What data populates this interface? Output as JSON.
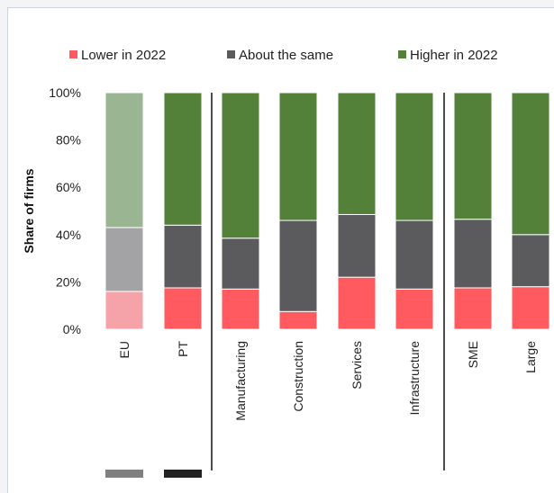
{
  "chart_data": {
    "type": "bar",
    "stacked": true,
    "ylabel": "Share of firms",
    "ylim": [
      0,
      100
    ],
    "yticks": [
      0,
      20,
      40,
      60,
      80,
      100
    ],
    "ytick_labels": [
      "0%",
      "20%",
      "40%",
      "60%",
      "80%",
      "100%"
    ],
    "categories": [
      "EU",
      "PT",
      "Manufacturing",
      "Construction",
      "Services",
      "Infrastructure",
      "SME",
      "Large"
    ],
    "faded_categories": [
      "EU"
    ],
    "series": [
      {
        "name": "Lower in 2022",
        "color": "#ff5a5f",
        "faded_color": "#f5a3a8",
        "values": [
          16,
          17.5,
          17,
          7.5,
          22,
          17,
          17.5,
          18
        ]
      },
      {
        "name": "About the same",
        "color": "#5b5b5e",
        "faded_color": "#a3a3a6",
        "values": [
          27,
          26.5,
          21.5,
          38.5,
          26.5,
          29,
          29,
          22
        ]
      },
      {
        "name": "Higher in 2022",
        "color": "#53813a",
        "faded_color": "#9ab591",
        "values": [
          57,
          56,
          61.5,
          54,
          51.5,
          54,
          53.5,
          60
        ]
      }
    ],
    "legend": "top",
    "group_separators_after": [
      "PT",
      "Infrastructure"
    ],
    "bottom_swatches": [
      {
        "category": "EU",
        "color": "#808080"
      },
      {
        "category": "PT",
        "color": "#222222"
      }
    ]
  }
}
